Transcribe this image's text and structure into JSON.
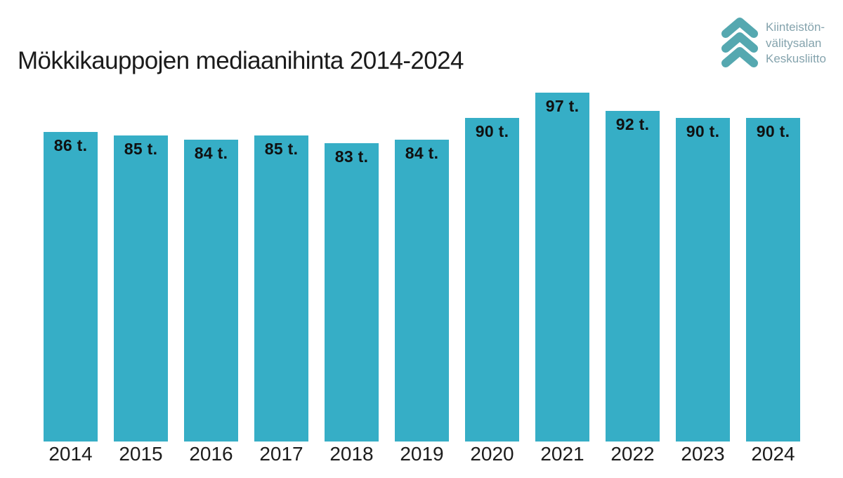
{
  "header": {
    "title": "Mökkikauppojen mediaanihinta 2014-2024",
    "logo": {
      "icon": "triple-chevron-up-icon",
      "icon_color": "#55a8b0",
      "text_color": "#84a3ad",
      "lines": [
        "Kiinteistön-",
        "välitysalan",
        "Keskusliitto"
      ]
    }
  },
  "chart_data": {
    "type": "bar",
    "title": "Mökkikauppojen mediaanihinta 2014-2024",
    "categories": [
      "2014",
      "2015",
      "2016",
      "2017",
      "2018",
      "2019",
      "2020",
      "2021",
      "2022",
      "2023",
      "2024"
    ],
    "values": [
      86,
      85,
      84,
      85,
      83,
      84,
      90,
      97,
      92,
      90,
      90
    ],
    "value_labels": [
      "86 t.",
      "85 t.",
      "84 t.",
      "85 t.",
      "83 t.",
      "84 t.",
      "90 t.",
      "97 t.",
      "92 t.",
      "90 t.",
      "90 t."
    ],
    "unit": "t.",
    "bar_color": "#36aec6",
    "label_color": "#101010",
    "xlabel": "",
    "ylabel": "",
    "ylim": [
      0,
      97
    ],
    "grid": false,
    "legend": false,
    "axis_lines": false,
    "value_label_position": "inside-top"
  }
}
